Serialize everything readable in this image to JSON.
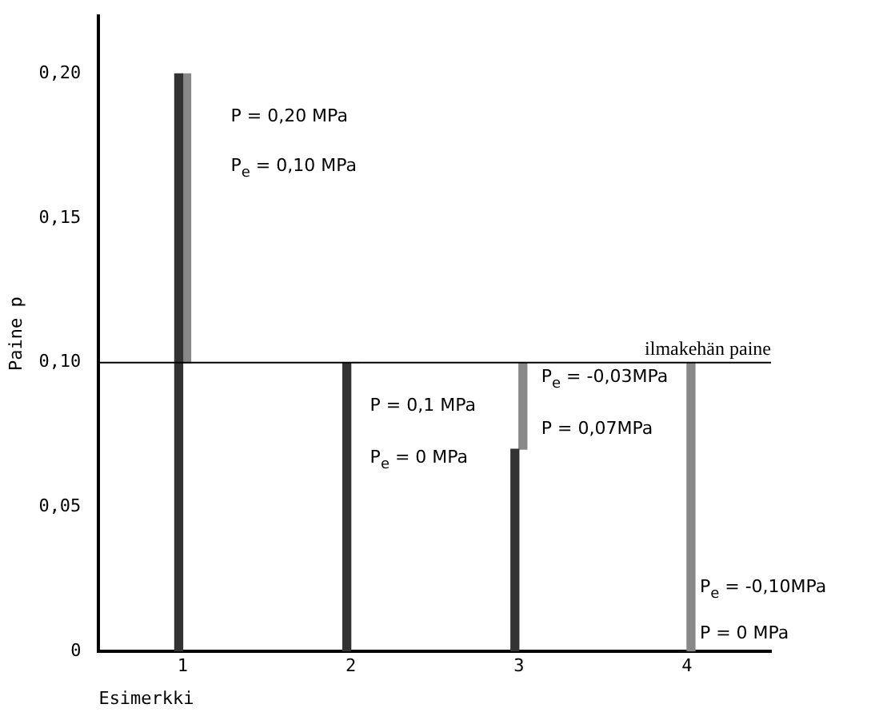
{
  "chart_data": {
    "type": "bar",
    "xlabel": "Esimerkki",
    "ylabel": "Paine p",
    "categories": [
      "1",
      "2",
      "3",
      "4"
    ],
    "series": [
      {
        "color": "#333333",
        "values": [
          0.2,
          0.1,
          0.07,
          0
        ]
      },
      {
        "color": "#888888",
        "base": [
          0.1,
          0.1,
          0.1,
          0.1
        ],
        "values": [
          0.1,
          0,
          -0.03,
          -0.1
        ]
      }
    ],
    "ylim": [
      0,
      0.22
    ],
    "yticks": [
      {
        "value": 0,
        "label": "0"
      },
      {
        "value": 0.05,
        "label": "0,05"
      },
      {
        "value": 0.1,
        "label": "0,10"
      },
      {
        "value": 0.15,
        "label": "0,15"
      },
      {
        "value": 0.2,
        "label": "0,20"
      }
    ],
    "grid": false,
    "legend": false,
    "ref_lines": [
      {
        "axis": "y",
        "value": 0.1,
        "label": "ilmakehän paine",
        "color": "#000000"
      }
    ],
    "annotations": [
      "P = 0,20 MPa",
      "P$_{e}$ = 0,10 MPa",
      "P = 0,1 MPa",
      "P$_{e}$ = 0 MPa",
      "P$_{e}$ = -0,03MPa",
      "P = 0,07MPa",
      "P$_{e}$ = -0,10MPa",
      "P = 0 MPa"
    ]
  }
}
